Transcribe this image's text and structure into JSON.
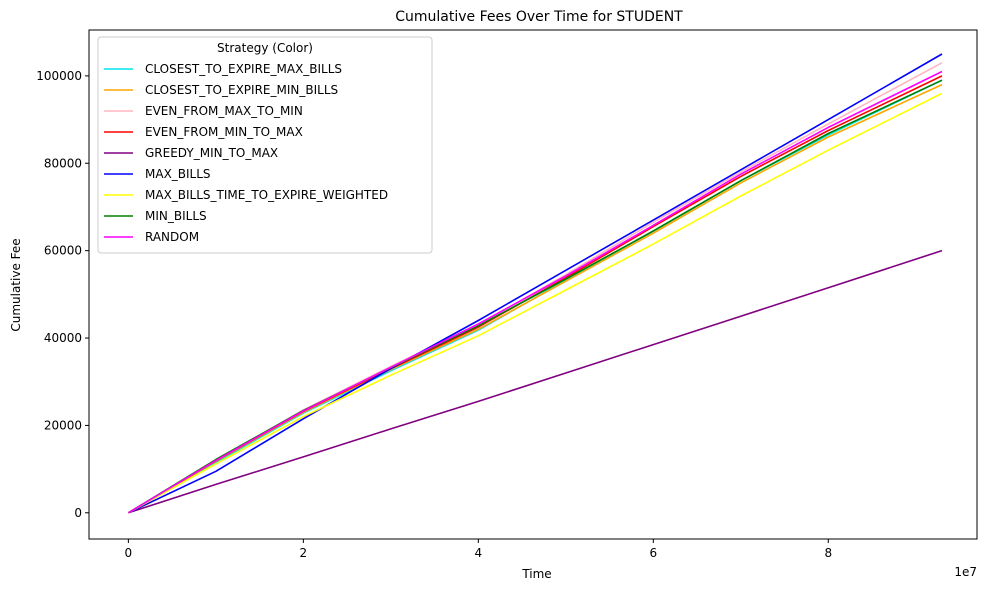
{
  "chart_data": {
    "type": "line",
    "title": "Cumulative Fees Over Time for STUDENT",
    "xlabel": "Time",
    "ylabel": "Cumulative Fee",
    "x_multiplier_label": "1e7",
    "xlim": [
      -0.45,
      9.7
    ],
    "ylim": [
      -6000,
      110500
    ],
    "x_ticks": [
      0,
      2,
      4,
      6,
      8
    ],
    "x_tick_labels": [
      "0",
      "2",
      "4",
      "6",
      "8"
    ],
    "y_ticks": [
      0,
      20000,
      40000,
      60000,
      80000,
      100000
    ],
    "y_tick_labels": [
      "0",
      "20000",
      "40000",
      "60000",
      "80000",
      "100000"
    ],
    "grid": false,
    "legend": {
      "title": "Strategy (Color)",
      "placement": "top-left"
    },
    "series": [
      {
        "name": "CLOSEST_TO_EXPIRE_MAX_BILLS",
        "color": "#00e5ee",
        "x": [
          0,
          1,
          2,
          3,
          4,
          5,
          6,
          7,
          8,
          9.3
        ],
        "y": [
          0,
          11500,
          22800,
          32500,
          41800,
          53200,
          64500,
          76000,
          86500,
          99000
        ]
      },
      {
        "name": "CLOSEST_TO_EXPIRE_MIN_BILLS",
        "color": "#ffa500",
        "x": [
          0,
          1,
          2,
          3,
          4,
          5,
          6,
          7,
          8,
          9.3
        ],
        "y": [
          0,
          11800,
          23000,
          32800,
          42000,
          53000,
          64000,
          75500,
          86000,
          98000
        ]
      },
      {
        "name": "EVEN_FROM_MAX_TO_MIN",
        "color": "#ffb6c1",
        "x": [
          0,
          1,
          2,
          3,
          4,
          5,
          6,
          7,
          8,
          9.3
        ],
        "y": [
          0,
          12000,
          23500,
          33500,
          43000,
          54500,
          66500,
          78000,
          89000,
          103000
        ]
      },
      {
        "name": "EVEN_FROM_MIN_TO_MAX",
        "color": "#ff0000",
        "x": [
          0,
          1,
          2,
          3,
          4,
          5,
          6,
          7,
          8,
          9.3
        ],
        "y": [
          0,
          11900,
          23200,
          33000,
          42500,
          53800,
          65500,
          77000,
          87500,
          100000
        ]
      },
      {
        "name": "GREEDY_MIN_TO_MAX",
        "color": "#800080",
        "x": [
          0,
          1,
          2,
          3,
          4,
          5,
          6,
          7,
          8,
          9.3
        ],
        "y": [
          0,
          6500,
          12800,
          19200,
          25500,
          32000,
          38500,
          45000,
          51500,
          60000
        ]
      },
      {
        "name": "MAX_BILLS",
        "color": "#0000ff",
        "x": [
          0,
          1,
          2,
          3,
          4,
          5,
          6,
          7,
          8,
          9.3
        ],
        "y": [
          0,
          9500,
          21500,
          33000,
          44000,
          55500,
          67000,
          78500,
          90000,
          105000
        ]
      },
      {
        "name": "MAX_BILLS_TIME_TO_EXPIRE_WEIGHTED",
        "color": "#ffff00",
        "x": [
          0,
          1,
          2,
          3,
          4,
          5,
          6,
          7,
          8,
          9.3
        ],
        "y": [
          0,
          11200,
          22000,
          31500,
          40500,
          51000,
          61500,
          72500,
          83000,
          96000
        ]
      },
      {
        "name": "MIN_BILLS",
        "color": "#008000",
        "x": [
          0,
          1,
          2,
          3,
          4,
          5,
          6,
          7,
          8,
          9.3
        ],
        "y": [
          0,
          12200,
          23400,
          33200,
          42800,
          53500,
          64500,
          76000,
          86800,
          99000
        ]
      },
      {
        "name": "RANDOM",
        "color": "#ff00ff",
        "x": [
          0,
          1,
          2,
          3,
          4,
          5,
          6,
          7,
          8,
          9.3
        ],
        "y": [
          0,
          12000,
          23300,
          33300,
          43200,
          54200,
          65800,
          77500,
          88200,
          101000
        ]
      }
    ]
  }
}
